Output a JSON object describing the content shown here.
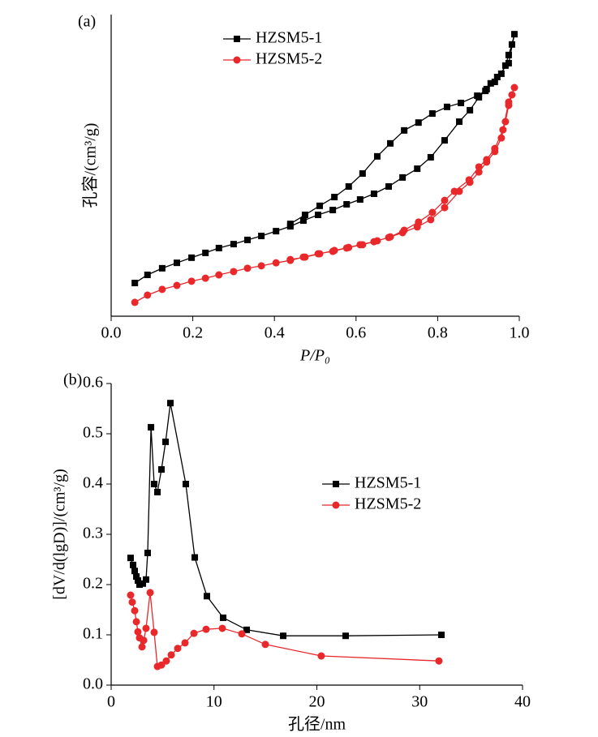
{
  "chart_data": [
    {
      "type": "line",
      "label": "(a)",
      "xlabel": "P/P₀",
      "ylabel": "孔容/(cm³/g)",
      "xlim": [
        0,
        1
      ],
      "ylim": [
        0,
        100
      ],
      "xticks": [
        {
          "value": 0,
          "label": "0.0"
        },
        0.2,
        0.4,
        0.6,
        0.8,
        {
          "value": 1,
          "label": "1.0"
        }
      ],
      "legend": "upper center",
      "series": [
        {
          "name": "HZSM5-1",
          "color": "#000000",
          "marker": "square",
          "x": [
            0.058,
            0.089,
            0.125,
            0.161,
            0.197,
            0.231,
            0.264,
            0.3,
            0.334,
            0.368,
            0.404,
            0.439,
            0.471,
            0.507,
            0.543,
            0.577,
            0.61,
            0.644,
            0.68,
            0.714,
            0.75,
            0.783,
            0.817,
            0.853,
            0.879,
            0.901,
            0.92,
            0.94,
            0.956,
            0.966,
            0.974,
            0.982,
            0.988,
            0.974,
            0.946,
            0.93,
            0.917,
            0.897,
            0.857,
            0.823,
            0.787,
            0.753,
            0.718,
            0.684,
            0.652,
            0.616,
            0.582,
            0.547,
            0.511,
            0.475,
            0.439
          ],
          "values": [
            11.0,
            13.7,
            15.9,
            17.7,
            19.4,
            21.0,
            22.6,
            23.9,
            25.3,
            26.6,
            28.2,
            29.8,
            31.7,
            33.6,
            35.2,
            37.1,
            38.7,
            40.6,
            43.0,
            46.0,
            48.9,
            52.7,
            58.3,
            64.5,
            68.3,
            72.6,
            75.3,
            77.7,
            80.4,
            83.1,
            86.6,
            90.1,
            93.5,
            83.9,
            79.3,
            77.2,
            74.7,
            73.1,
            70.7,
            69.4,
            67.2,
            64.2,
            61.6,
            57.3,
            53.0,
            47.3,
            43.0,
            39.5,
            36.6,
            33.6,
            30.6
          ]
        },
        {
          "name": "HZSM5-2",
          "color": "#e8282b",
          "marker": "circle",
          "x": [
            0.058,
            0.089,
            0.125,
            0.161,
            0.197,
            0.231,
            0.264,
            0.3,
            0.334,
            0.368,
            0.404,
            0.439,
            0.471,
            0.507,
            0.543,
            0.577,
            0.61,
            0.644,
            0.68,
            0.714,
            0.75,
            0.783,
            0.817,
            0.853,
            0.879,
            0.901,
            0.92,
            0.94,
            0.956,
            0.966,
            0.974,
            0.982,
            0.988,
            0.974,
            0.96,
            0.94,
            0.92,
            0.901,
            0.877,
            0.841,
            0.817,
            0.787,
            0.753,
            0.718,
            0.684,
            0.652,
            0.616,
            0.582,
            0.547,
            0.511,
            0.475,
            0.439
          ],
          "values": [
            4.6,
            7.0,
            8.9,
            10.2,
            11.6,
            12.6,
            13.7,
            14.8,
            15.9,
            16.7,
            17.7,
            18.5,
            19.6,
            20.7,
            21.5,
            22.6,
            23.7,
            24.7,
            26.1,
            27.7,
            29.6,
            32.0,
            36.0,
            41.4,
            44.4,
            47.8,
            51.1,
            54.6,
            59.1,
            64.5,
            69.9,
            73.4,
            75.8,
            71.0,
            61.8,
            55.6,
            51.9,
            49.5,
            45.2,
            41.4,
            38.4,
            34.4,
            31.2,
            28.5,
            26.3,
            25.0,
            23.7,
            22.8,
            21.8,
            20.7,
            19.6,
            18.8
          ]
        }
      ]
    },
    {
      "type": "line",
      "label": "(b)",
      "xlabel": "孔径/nm",
      "ylabel": "[dV/d(lgD)]/(cm³/g)",
      "xlim": [
        0,
        40
      ],
      "ylim": [
        0,
        0.6
      ],
      "xticks": [
        0,
        10,
        20,
        30,
        40
      ],
      "yticks": [
        {
          "value": 0,
          "label": "0.0"
        },
        0.1,
        0.2,
        0.3,
        0.4,
        0.5,
        0.6
      ],
      "legend": "center right",
      "series": [
        {
          "name": "HZSM5-1",
          "color": "#000000",
          "marker": "square",
          "x": [
            1.89,
            2.13,
            2.29,
            2.45,
            2.6,
            2.76,
            3.08,
            3.39,
            3.55,
            3.87,
            4.18,
            4.5,
            4.89,
            5.29,
            5.76,
            7.26,
            8.13,
            9.31,
            10.89,
            13.18,
            16.73,
            22.8,
            32.11
          ],
          "values": [
            0.253,
            0.239,
            0.227,
            0.216,
            0.208,
            0.2,
            0.202,
            0.21,
            0.263,
            0.513,
            0.4,
            0.384,
            0.429,
            0.484,
            0.561,
            0.4,
            0.254,
            0.177,
            0.134,
            0.11,
            0.098,
            0.098,
            0.1
          ]
        },
        {
          "name": "HZSM5-2",
          "color": "#e8282b",
          "marker": "circle",
          "x": [
            1.89,
            2.05,
            2.29,
            2.45,
            2.6,
            2.76,
            3.0,
            3.16,
            3.39,
            3.79,
            4.18,
            4.5,
            4.89,
            5.36,
            5.84,
            6.47,
            7.18,
            8.05,
            9.23,
            10.81,
            12.7,
            14.99,
            20.43,
            31.87
          ],
          "values": [
            0.179,
            0.165,
            0.148,
            0.126,
            0.106,
            0.094,
            0.076,
            0.089,
            0.113,
            0.184,
            0.105,
            0.037,
            0.04,
            0.048,
            0.06,
            0.073,
            0.084,
            0.103,
            0.111,
            0.113,
            0.102,
            0.081,
            0.058,
            0.048
          ]
        }
      ]
    }
  ]
}
